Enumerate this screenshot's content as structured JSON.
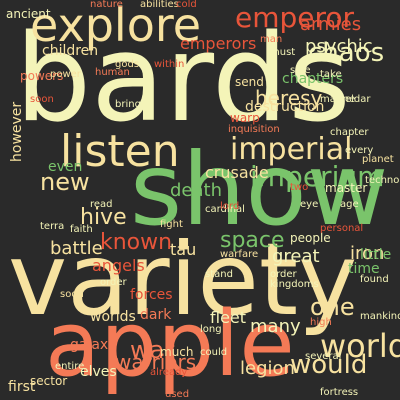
{
  "background": "#2a2a2a",
  "palette": [
    "#f4f4b8",
    "#f7e2a0",
    "#7ac46b",
    "#f47a56",
    "#e8553a"
  ],
  "words": [
    "bards",
    "variety",
    "show",
    "apple",
    "explore",
    "listen",
    "emperor",
    "chaos",
    "imperial",
    "imperium",
    "would",
    "world",
    "one",
    "war",
    "new",
    "known",
    "space",
    "heresy",
    "psychic",
    "armies",
    "hive",
    "battle",
    "great",
    "many",
    "death",
    "emperors",
    "warriors",
    "fleet",
    "legion",
    "angels",
    "worlds",
    "forces",
    "dark",
    "galaxy",
    "elves",
    "chapters",
    "destruction",
    "warp",
    "crusade",
    "tau",
    "iron",
    "time",
    "little",
    "even",
    "however",
    "first",
    "powers",
    "children",
    "ancient",
    "nature",
    "abilities",
    "cold",
    "man",
    "must",
    "gods",
    "within",
    "human",
    "power",
    "soon",
    "bring",
    "send",
    "marine",
    "eldar",
    "inquisition",
    "chapter",
    "every",
    "planet",
    "age",
    "eye",
    "master",
    "cardinal",
    "lord",
    "read",
    "terra",
    "fight",
    "faith",
    "order",
    "warfare",
    "found",
    "people",
    "personal",
    "mankind",
    "high",
    "long",
    "sector",
    "entire",
    "could",
    "already",
    "much",
    "used",
    "several",
    "fortress",
    "kingdoms",
    "stand",
    "side",
    "take",
    "two",
    "technology"
  ]
}
